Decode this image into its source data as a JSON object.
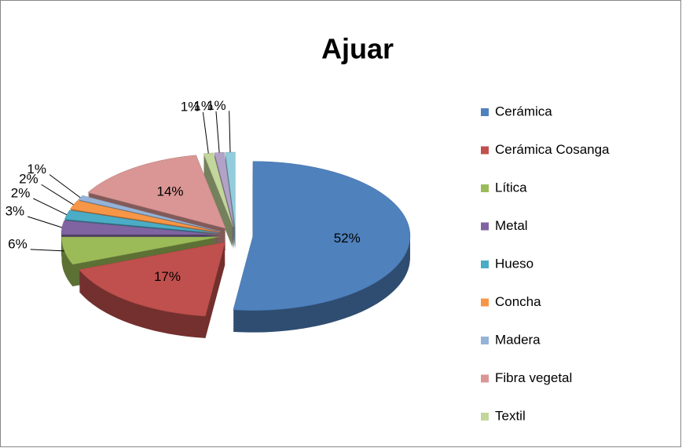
{
  "chart_data": {
    "type": "pie",
    "title": "Ajuar",
    "categories": [
      "Cerámica",
      "Cerámica Cosanga",
      "Lítica",
      "Metal",
      "Hueso",
      "Concha",
      "Madera",
      "Fibra vegetal",
      "Textil",
      null,
      null
    ],
    "values": [
      52,
      17,
      6,
      3,
      2,
      2,
      1,
      14,
      1,
      1,
      1
    ],
    "value_labels": [
      "52%",
      "17%",
      "6%",
      "3%",
      "2%",
      "2%",
      "1%",
      "14%",
      "1%",
      "1%",
      "1%"
    ],
    "colors": [
      "#4f81bd",
      "#c0504d",
      "#9bbb59",
      "#8064a2",
      "#4bacc6",
      "#f79646",
      "#95b3d7",
      "#d99694",
      "#c3d69b",
      "#b3a2c7",
      "#93cddd"
    ],
    "legend": "right"
  }
}
